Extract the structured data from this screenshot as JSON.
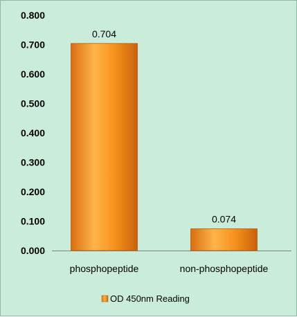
{
  "chart_data": {
    "type": "bar",
    "categories": [
      "phosphopeptide",
      "non-phosphopeptide"
    ],
    "series": [
      {
        "name": "OD 450nm Reading",
        "values": [
          0.704,
          0.074
        ]
      }
    ],
    "data_labels": [
      "0.704",
      "0.074"
    ],
    "yticks": [
      "0.000",
      "0.100",
      "0.200",
      "0.300",
      "0.400",
      "0.500",
      "0.600",
      "0.700",
      "0.800"
    ],
    "ylim": [
      0,
      0.8
    ],
    "grid": false,
    "legend_position": "bottom",
    "colors": {
      "bar_light": "#ffb44a",
      "bar_mid": "#f7931e",
      "bar_dark": "#c8620a",
      "background": "#c9ecdb"
    }
  }
}
